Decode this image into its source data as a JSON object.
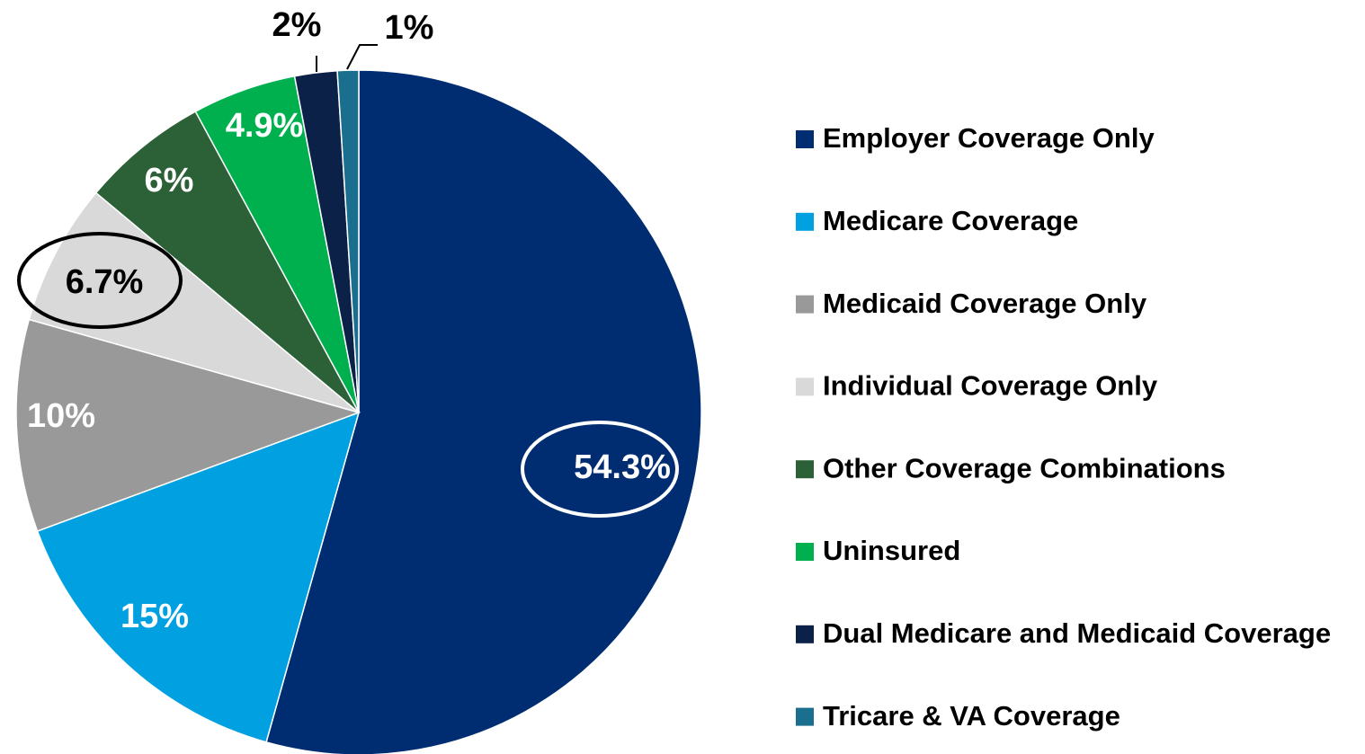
{
  "chart_data": {
    "type": "pie",
    "categories": [
      "Employer Coverage Only",
      "Medicare Coverage",
      "Medicaid Coverage Only",
      "Individual Coverage Only",
      "Other Coverage Combinations",
      "Uninsured",
      "Dual Medicare and Medicaid Coverage",
      "Tricare & VA Coverage"
    ],
    "values": [
      54.3,
      15,
      10,
      6.7,
      6,
      4.9,
      2,
      1
    ],
    "value_labels": [
      "54.3%",
      "15%",
      "10%",
      "6.7%",
      "6%",
      "4.9%",
      "2%",
      "1%"
    ],
    "colors": [
      "#002d72",
      "#00a0e1",
      "#999999",
      "#d9d9d9",
      "#2c6138",
      "#00b04f",
      "#0c2148",
      "#1a6e8e"
    ],
    "legend": "right"
  }
}
